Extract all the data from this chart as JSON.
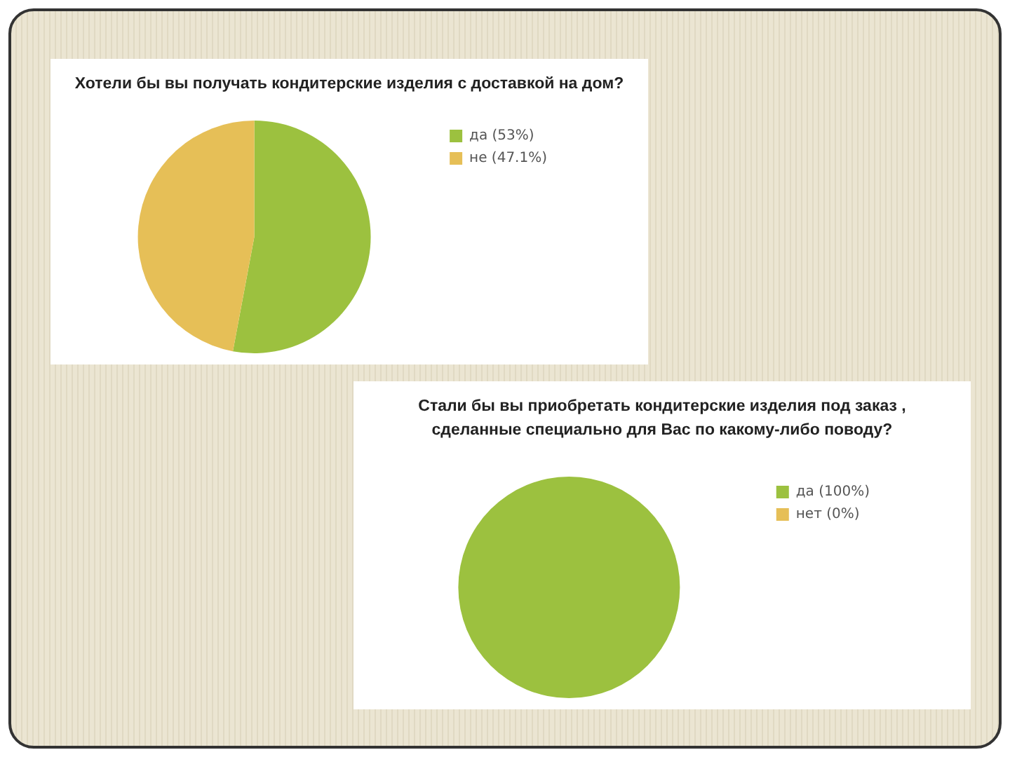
{
  "chart_data": [
    {
      "type": "pie",
      "title": "Хотели бы вы получать кондитерские изделия с доставкой на дом?",
      "categories": [
        "да (53%)",
        "не (47.1%)"
      ],
      "values": [
        53,
        47.1
      ],
      "colors": [
        "#9cc13f",
        "#e6bf57"
      ],
      "legend": "right"
    },
    {
      "type": "pie",
      "title": "Стали бы вы приобретать кондитерские изделия под заказ ,\nсделанные специально для Вас  по какому-либо поводу?",
      "categories": [
        "да (100%)",
        "нет (0%)"
      ],
      "values": [
        100,
        0
      ],
      "colors": [
        "#9cc13f",
        "#e6bf57"
      ],
      "legend": "right"
    }
  ]
}
